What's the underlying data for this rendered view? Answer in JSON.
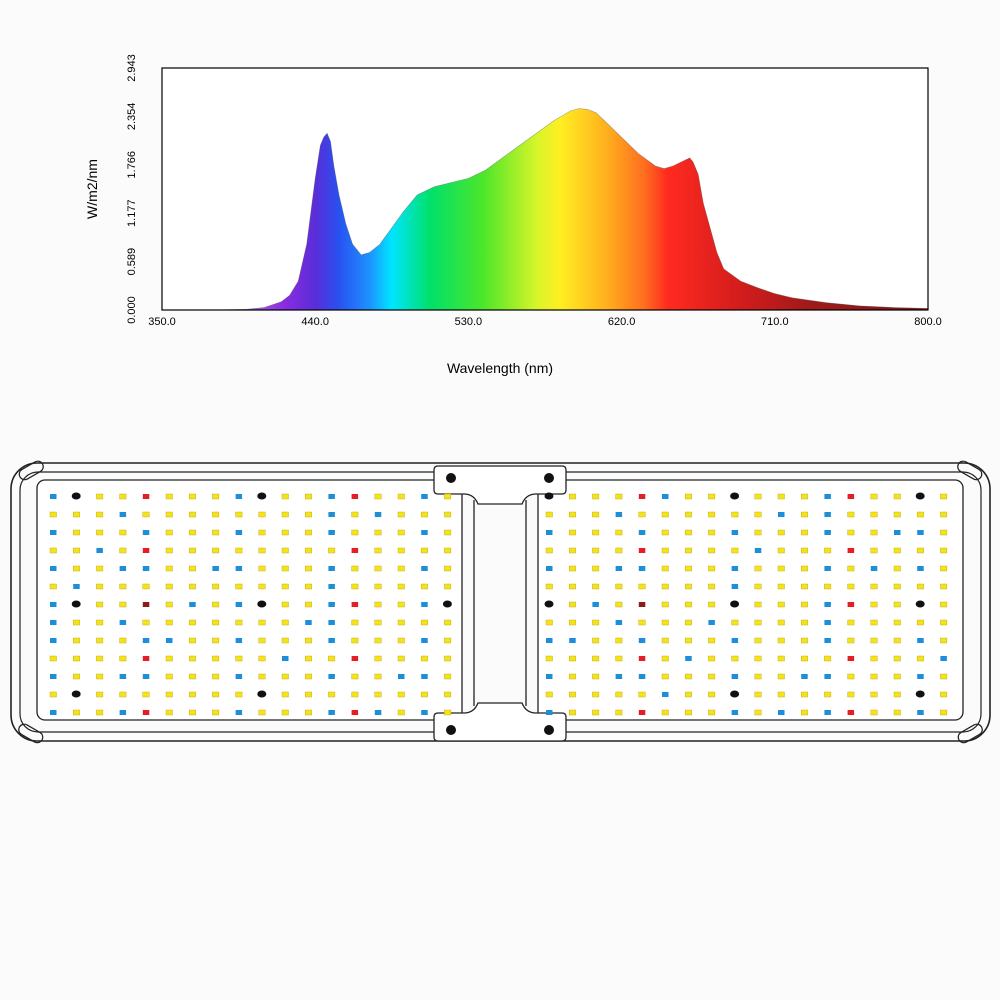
{
  "chart_data": {
    "type": "area",
    "title": "",
    "xlabel": "Wavelength (nm)",
    "ylabel": "W/m2/nm",
    "xlim": [
      350,
      800
    ],
    "ylim": [
      0,
      2.943
    ],
    "x_ticks": [
      "350.0",
      "440.0",
      "530.0",
      "620.0",
      "710.0",
      "800.0"
    ],
    "y_ticks": [
      "0.000",
      "0.589",
      "1.177",
      "1.766",
      "2.354",
      "2.943"
    ],
    "fill": "visible-spectrum-gradient",
    "grid": false,
    "series": [
      {
        "x": [
          350,
          380,
          400,
          410,
          420,
          425,
          430,
          435,
          440,
          443,
          445,
          447,
          449,
          451,
          454,
          458,
          462,
          467,
          472,
          478,
          485,
          492,
          500,
          510,
          520,
          530,
          540,
          550,
          560,
          570,
          580,
          590,
          595,
          600,
          605,
          610,
          620,
          630,
          640,
          645,
          650,
          655,
          660,
          662,
          665,
          668,
          672,
          676,
          680,
          690,
          700,
          710,
          720,
          740,
          760,
          780,
          800
        ],
        "y": [
          0.0,
          0.0,
          0.01,
          0.03,
          0.1,
          0.18,
          0.35,
          0.8,
          1.6,
          2.0,
          2.1,
          2.15,
          2.05,
          1.75,
          1.4,
          1.05,
          0.8,
          0.67,
          0.7,
          0.8,
          1.0,
          1.2,
          1.4,
          1.5,
          1.55,
          1.6,
          1.7,
          1.85,
          2.0,
          2.15,
          2.3,
          2.42,
          2.45,
          2.44,
          2.4,
          2.3,
          2.1,
          1.9,
          1.75,
          1.72,
          1.75,
          1.8,
          1.85,
          1.8,
          1.65,
          1.3,
          1.0,
          0.7,
          0.5,
          0.35,
          0.27,
          0.2,
          0.15,
          0.09,
          0.05,
          0.03,
          0.02
        ]
      }
    ]
  },
  "fixture": {
    "led_colors": {
      "white": "#f5e31a",
      "blue": "#1d8fd8",
      "red": "#e51e25",
      "far_red": "#8c1b1b",
      "mount": "#111111"
    }
  }
}
